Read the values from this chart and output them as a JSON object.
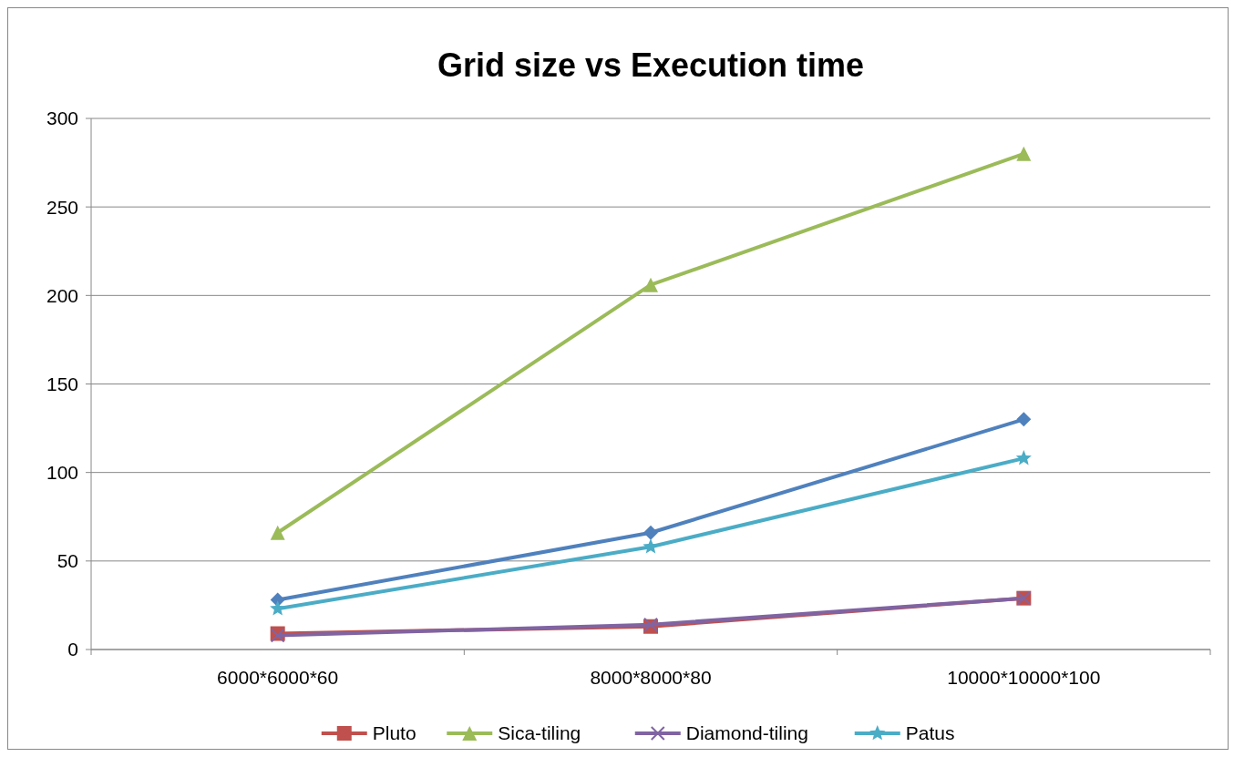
{
  "chart_data": {
    "type": "line",
    "title": "Grid size vs Execution time",
    "categories": [
      "6000*6000*60",
      "8000*8000*80",
      "10000*10000*100"
    ],
    "ylim": [
      0,
      300
    ],
    "yticks": [
      0,
      50,
      100,
      150,
      200,
      250,
      300
    ],
    "grid": "y",
    "legend": "bottom",
    "series": [
      {
        "color": "#4f81bd",
        "marker": "diamond",
        "values": [
          28,
          66,
          130
        ]
      },
      {
        "name": "Pluto",
        "color": "#c0504d",
        "marker": "square",
        "values": [
          9,
          13,
          29
        ]
      },
      {
        "name": "Sica-tiling",
        "color": "#9bbb59",
        "marker": "triangle",
        "values": [
          66,
          206,
          280
        ]
      },
      {
        "name": "Diamond-tiling",
        "color": "#8064a2",
        "marker": "cross",
        "values": [
          8,
          14,
          29
        ]
      },
      {
        "name": "Patus",
        "color": "#4bacc6",
        "marker": "star",
        "values": [
          23,
          58,
          108
        ]
      }
    ]
  }
}
